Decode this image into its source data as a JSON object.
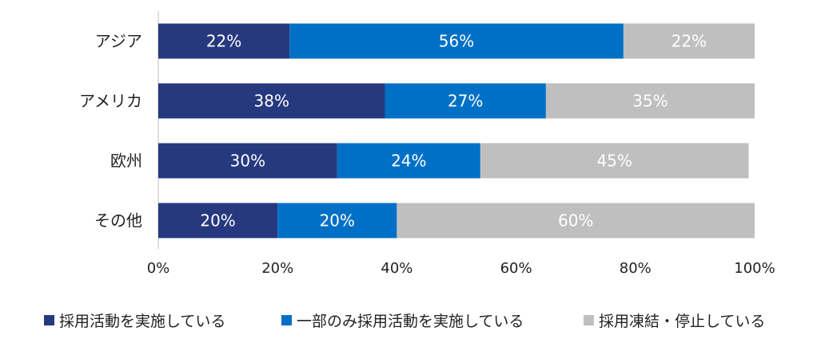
{
  "chart_data": {
    "type": "bar",
    "orientation": "horizontal",
    "stacked": true,
    "categories": [
      "アジア",
      "アメリカ",
      "欧州",
      "その他"
    ],
    "series": [
      {
        "name": "採用活動を実施している",
        "values": [
          22,
          38,
          30,
          20
        ],
        "labels": [
          "22%",
          "38%",
          "30%",
          "20%"
        ],
        "color": "#26397F"
      },
      {
        "name": "一部のみ採用活動を実施している",
        "values": [
          56,
          27,
          24,
          20
        ],
        "labels": [
          "56%",
          "27%",
          "24%",
          "20%"
        ],
        "color": "#0070C6"
      },
      {
        "name": "採用凍結・停止している",
        "values": [
          22,
          35,
          45,
          60
        ],
        "labels": [
          "22%",
          "35%",
          "45%",
          "60%"
        ],
        "color": "#BFBFBF"
      }
    ],
    "xlim": [
      0,
      100
    ],
    "xticks": [
      0,
      20,
      40,
      60,
      80,
      100
    ],
    "xtick_labels": [
      "0%",
      "20%",
      "40%",
      "60%",
      "80%",
      "100%"
    ],
    "grid": false,
    "legend_position": "bottom"
  }
}
